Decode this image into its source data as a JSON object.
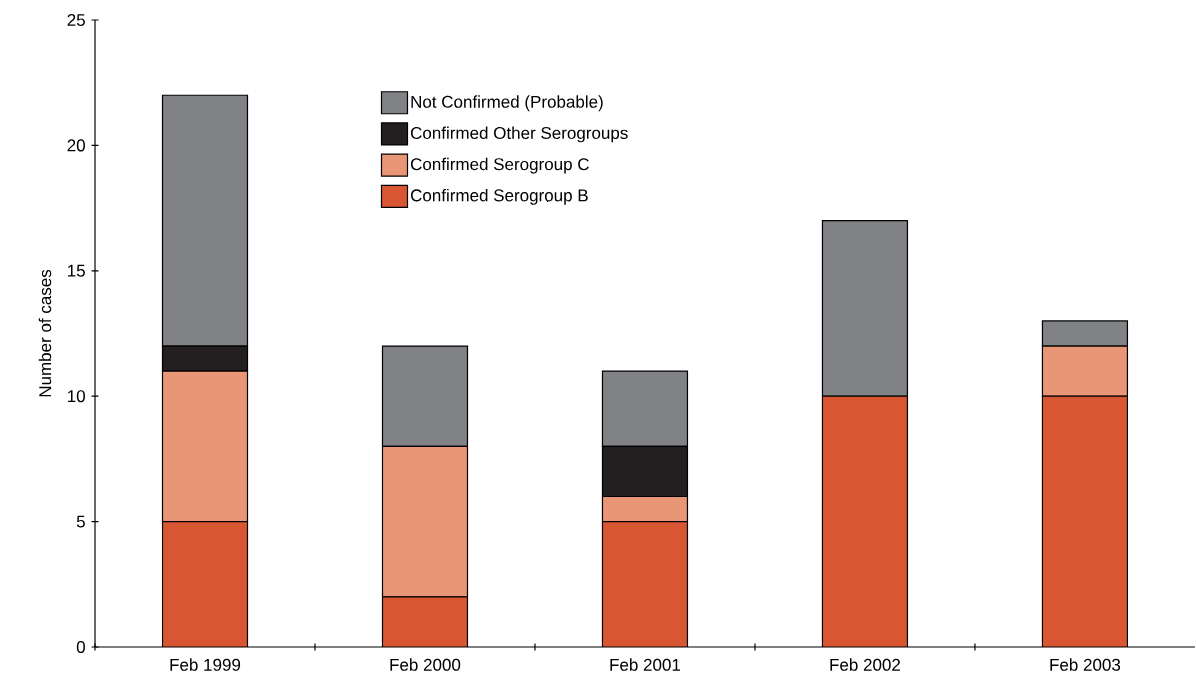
{
  "chart_data": {
    "type": "bar",
    "stacked": true,
    "ylabel": "Number of cases",
    "categories": [
      "Feb 1999",
      "Feb 2000",
      "Feb 2001",
      "Feb 2002",
      "Feb 2003"
    ],
    "series": [
      {
        "name": "Confirmed Serogroup B",
        "color": "#d95632",
        "values": [
          5,
          2,
          5,
          10,
          10
        ]
      },
      {
        "name": "Confirmed Serogroup C",
        "color": "#e89676",
        "values": [
          6,
          6,
          1,
          0,
          2
        ]
      },
      {
        "name": "Confirmed Other Serogroups",
        "color": "#231f20",
        "values": [
          1,
          0,
          2,
          0,
          0
        ]
      },
      {
        "name": "Not Confirmed (Probable)",
        "color": "#808285",
        "values": [
          10,
          4,
          3,
          7,
          1
        ]
      }
    ],
    "ylim": [
      0,
      25
    ],
    "yticks": [
      0,
      5,
      10,
      15,
      20,
      25
    ],
    "legend": "top",
    "grid": false
  }
}
